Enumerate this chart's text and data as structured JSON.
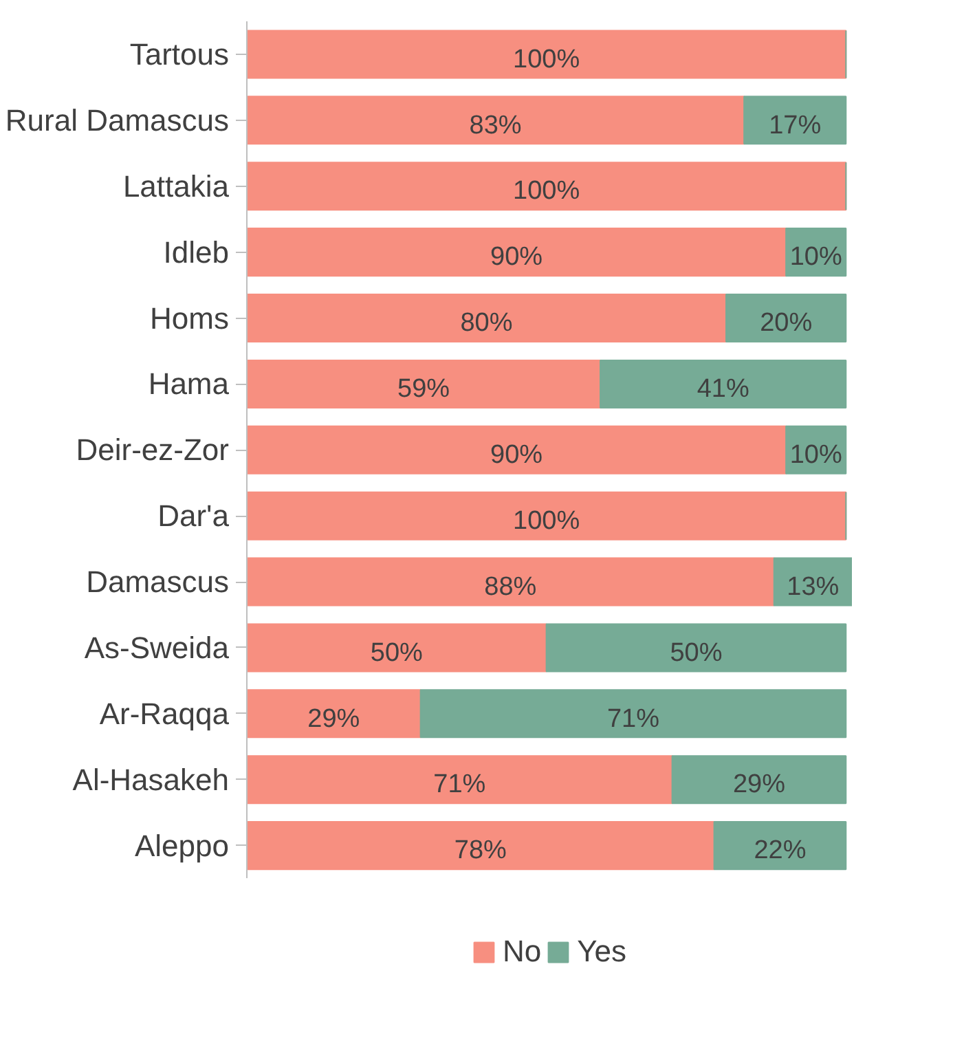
{
  "chart_data": {
    "type": "bar",
    "orientation": "horizontal",
    "stacked": true,
    "categories": [
      "Tartous",
      "Rural Damascus",
      "Lattakia",
      "Idleb",
      "Homs",
      "Hama",
      "Deir-ez-Zor",
      "Dar'a",
      "Damascus",
      "As-Sweida",
      "Ar-Raqqa",
      "Al-Hasakeh",
      "Aleppo"
    ],
    "series": [
      {
        "name": "No",
        "color": "#f78f80",
        "values": [
          100,
          83,
          100,
          90,
          80,
          59,
          90,
          100,
          88,
          50,
          29,
          71,
          78
        ],
        "value_labels": [
          "100%",
          "83%",
          "100%",
          "90%",
          "80%",
          "59%",
          "90%",
          "100%",
          "88%",
          "50%",
          "29%",
          "71%",
          "78%"
        ]
      },
      {
        "name": "Yes",
        "color": "#76ab96",
        "values": [
          0,
          17,
          0,
          10,
          20,
          41,
          10,
          0,
          13,
          50,
          71,
          29,
          22
        ],
        "value_labels": [
          null,
          "17%",
          null,
          "10%",
          "20%",
          "41%",
          "10%",
          null,
          "13%",
          "50%",
          "71%",
          "29%",
          "22%"
        ]
      }
    ],
    "xlim": [
      0,
      101
    ],
    "tick_labels": "y",
    "grid": false,
    "legend": "bottom"
  }
}
